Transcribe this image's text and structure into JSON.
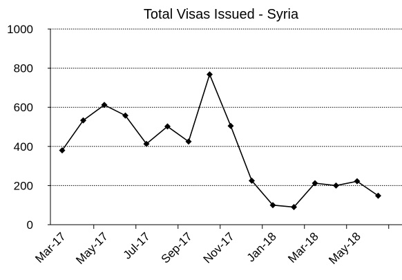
{
  "chart_data": {
    "type": "line",
    "title": "Total Visas Issued - Syria",
    "xlabel": "",
    "ylabel": "",
    "ylim": [
      0,
      1000
    ],
    "yticks": [
      0,
      200,
      400,
      600,
      800,
      1000
    ],
    "x_tick_labels": [
      "Mar-17",
      "May-17",
      "Jul-17",
      "Sep-17",
      "Nov-17",
      "Jan-18",
      "Mar-18",
      "May-18"
    ],
    "x": [
      "Mar-17",
      "Apr-17",
      "May-17",
      "Jun-17",
      "Jul-17",
      "Aug-17",
      "Sep-17",
      "Oct-17",
      "Nov-17",
      "Dec-17",
      "Jan-18",
      "Feb-18",
      "Mar-18",
      "Apr-18",
      "May-18",
      "Jun-18"
    ],
    "series": [
      {
        "values": [
          380,
          533,
          612,
          558,
          413,
          502,
          425,
          768,
          505,
          225,
          100,
          90,
          212,
          200,
          222,
          148
        ],
        "color": "#000000",
        "marker": "diamond"
      }
    ],
    "grid": "horizontal-dotted",
    "legend": "none"
  }
}
